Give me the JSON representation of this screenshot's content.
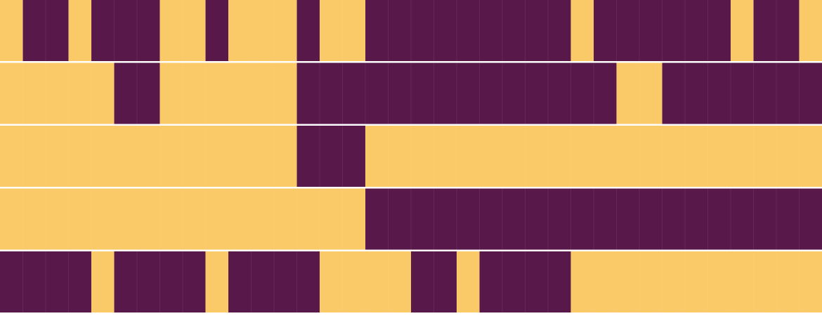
{
  "grid": {
    "colors": [
      "#fac968",
      "#58184a"
    ],
    "rows": [
      [
        0,
        1,
        1,
        0,
        1,
        1,
        1,
        0,
        0,
        1,
        0,
        0,
        0,
        1,
        0,
        0,
        1,
        1,
        1,
        1,
        1,
        1,
        1,
        1,
        1,
        0,
        1,
        1,
        1,
        1,
        1,
        1,
        0,
        1,
        1,
        0
      ],
      [
        0,
        0,
        0,
        0,
        0,
        1,
        1,
        0,
        0,
        0,
        0,
        0,
        0,
        1,
        1,
        1,
        1,
        1,
        1,
        1,
        1,
        1,
        1,
        1,
        1,
        1,
        1,
        0,
        0,
        1,
        1,
        1,
        1,
        1,
        1,
        1
      ],
      [
        0,
        0,
        0,
        0,
        0,
        0,
        0,
        0,
        0,
        0,
        0,
        0,
        0,
        1,
        1,
        1,
        0,
        0,
        0,
        0,
        0,
        0,
        0,
        0,
        0,
        0,
        0,
        0,
        0,
        0,
        0,
        0,
        0,
        0,
        0,
        0
      ],
      [
        0,
        0,
        0,
        0,
        0,
        0,
        0,
        0,
        0,
        0,
        0,
        0,
        0,
        0,
        0,
        0,
        1,
        1,
        1,
        1,
        1,
        1,
        1,
        1,
        1,
        1,
        1,
        1,
        1,
        1,
        1,
        1,
        1,
        1,
        1,
        1
      ],
      [
        1,
        1,
        1,
        1,
        0,
        1,
        1,
        1,
        1,
        0,
        1,
        1,
        1,
        1,
        0,
        0,
        0,
        0,
        1,
        1,
        0,
        1,
        1,
        1,
        1,
        0,
        0,
        0,
        0,
        0,
        0,
        0,
        0,
        0,
        0,
        0
      ]
    ]
  }
}
